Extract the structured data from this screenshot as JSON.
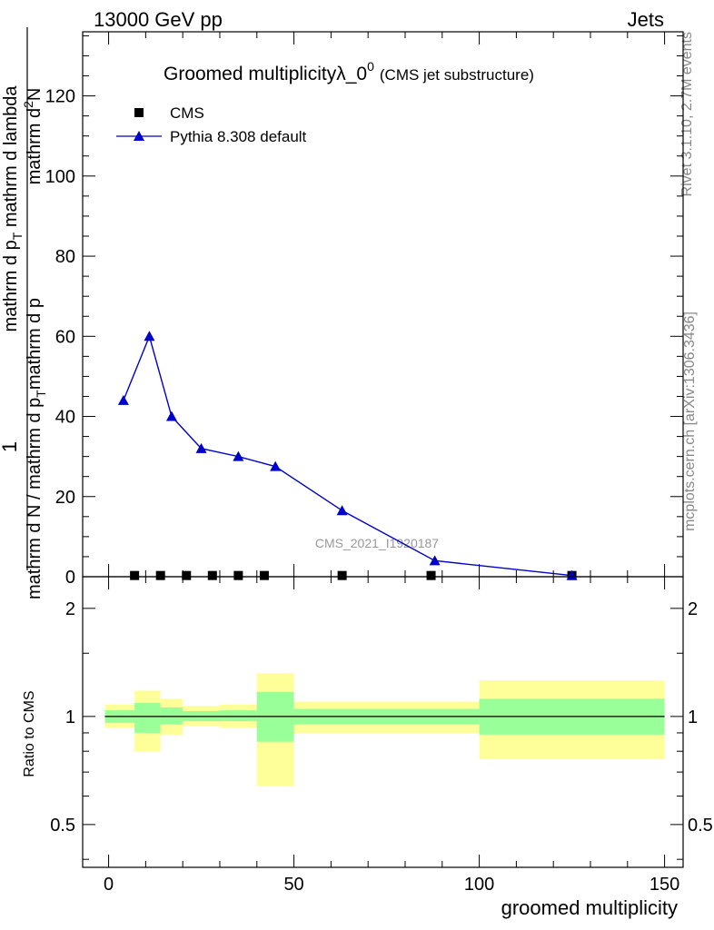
{
  "header": {
    "left": "13000 GeV pp",
    "right": "Jets"
  },
  "side_labels": {
    "rivet": "Rivet 3.1.10,  2.7M events",
    "mcplots": "mcplots.cern.ch [arXiv:1306.3436]"
  },
  "watermark": "CMS_2021_I1920187",
  "chart_data": [
    {
      "type": "line",
      "title": "Groomed multiplicity",
      "title_symbol": "λ_0",
      "title_superscript": "0",
      "title_suffix": "(CMS jet substructure)",
      "ylabel": "1 / mathrm d N / mathrm d p_T mathrm d p_T mathrm d lambda mathrm d^2N",
      "ylabel_parts": {
        "top": "mathrm d^2N",
        "top_main": "mathrm d",
        "top_sup": "2",
        "top_end": "N",
        "bottom_a": "mathrm d p",
        "bottom_a_sub": "T",
        "bottom_b": " mathrm d lambda",
        "denominator": "mathrm d N / mathrm d p",
        "denominator_sub": "T",
        "denominator_end": "mathrm d p",
        "numerator_one": "1"
      },
      "xlim": [
        -7,
        155
      ],
      "ylim": [
        0,
        136
      ],
      "yticks": [
        0,
        20,
        40,
        60,
        80,
        100,
        120
      ],
      "legend": {
        "placement": "top-left",
        "entries": [
          "CMS",
          "Pythia 8.308 default"
        ]
      },
      "series": [
        {
          "name": "CMS",
          "marker": "square",
          "color": "#000000",
          "x": [
            7,
            14,
            21,
            28,
            35,
            42,
            63,
            87,
            125
          ],
          "y": [
            0.3,
            0.3,
            0.3,
            0.3,
            0.3,
            0.3,
            0.3,
            0.3,
            0.3
          ]
        },
        {
          "name": "Pythia 8.308 default",
          "marker": "triangle",
          "color": "#0000cc",
          "x": [
            4,
            11,
            17,
            25,
            35,
            45,
            63,
            88,
            125
          ],
          "y": [
            44,
            60,
            40,
            32,
            30,
            27.5,
            16.5,
            4,
            0.3
          ]
        }
      ]
    },
    {
      "type": "area",
      "ylabel": "Ratio to CMS",
      "xlabel": "groomed multiplicity",
      "xlim": [
        -7,
        155
      ],
      "xticks": [
        0,
        50,
        100,
        150
      ],
      "ylim": [
        0.38,
        2.45
      ],
      "ylog": true,
      "yticks": [
        0.5,
        1,
        2
      ],
      "reference_line": 1,
      "bands": [
        {
          "x0": -1,
          "x1": 7,
          "inner": [
            0.96,
            1.04
          ],
          "outer": [
            0.93,
            1.08
          ]
        },
        {
          "x0": 7,
          "x1": 14,
          "inner": [
            0.9,
            1.09
          ],
          "outer": [
            0.8,
            1.18
          ]
        },
        {
          "x0": 14,
          "x1": 20,
          "inner": [
            0.95,
            1.06
          ],
          "outer": [
            0.89,
            1.12
          ]
        },
        {
          "x0": 20,
          "x1": 30,
          "inner": [
            0.97,
            1.035
          ],
          "outer": [
            0.94,
            1.07
          ]
        },
        {
          "x0": 30,
          "x1": 40,
          "inner": [
            0.97,
            1.04
          ],
          "outer": [
            0.93,
            1.08
          ]
        },
        {
          "x0": 40,
          "x1": 50,
          "inner": [
            0.85,
            1.17
          ],
          "outer": [
            0.64,
            1.32
          ]
        },
        {
          "x0": 50,
          "x1": 100,
          "inner": [
            0.95,
            1.05
          ],
          "outer": [
            0.9,
            1.1
          ]
        },
        {
          "x0": 100,
          "x1": 150,
          "inner": [
            0.89,
            1.12
          ],
          "outer": [
            0.76,
            1.26
          ]
        }
      ],
      "band_colors": {
        "inner": "#99ff99",
        "outer": "#ffff99"
      }
    }
  ]
}
